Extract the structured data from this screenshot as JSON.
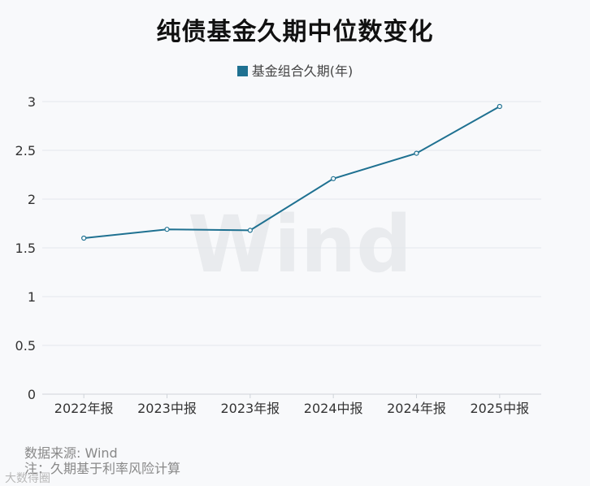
{
  "chart_data": {
    "type": "line",
    "title": "纯债基金久期中位数变化",
    "categories": [
      "2022年报",
      "2023中报",
      "2023年报",
      "2024中报",
      "2024年报",
      "2025中报"
    ],
    "series": [
      {
        "name": "基金组合久期(年)",
        "values": [
          1.6,
          1.69,
          1.68,
          2.21,
          2.47,
          2.95
        ]
      }
    ],
    "ylim": [
      0,
      3
    ],
    "yticks": [
      "0",
      "0.5",
      "1",
      "1.5",
      "2",
      "2.5",
      "3"
    ],
    "grid": true,
    "legend_position": "top-center",
    "watermark": "Wind",
    "colors": {
      "series": "#1f7191",
      "grid": "#e4e7ec",
      "axis": "#333333"
    }
  },
  "footer": {
    "source": "数据来源: Wind",
    "note": "注：久期基于利率风险计算"
  },
  "brand": "大数得圈"
}
